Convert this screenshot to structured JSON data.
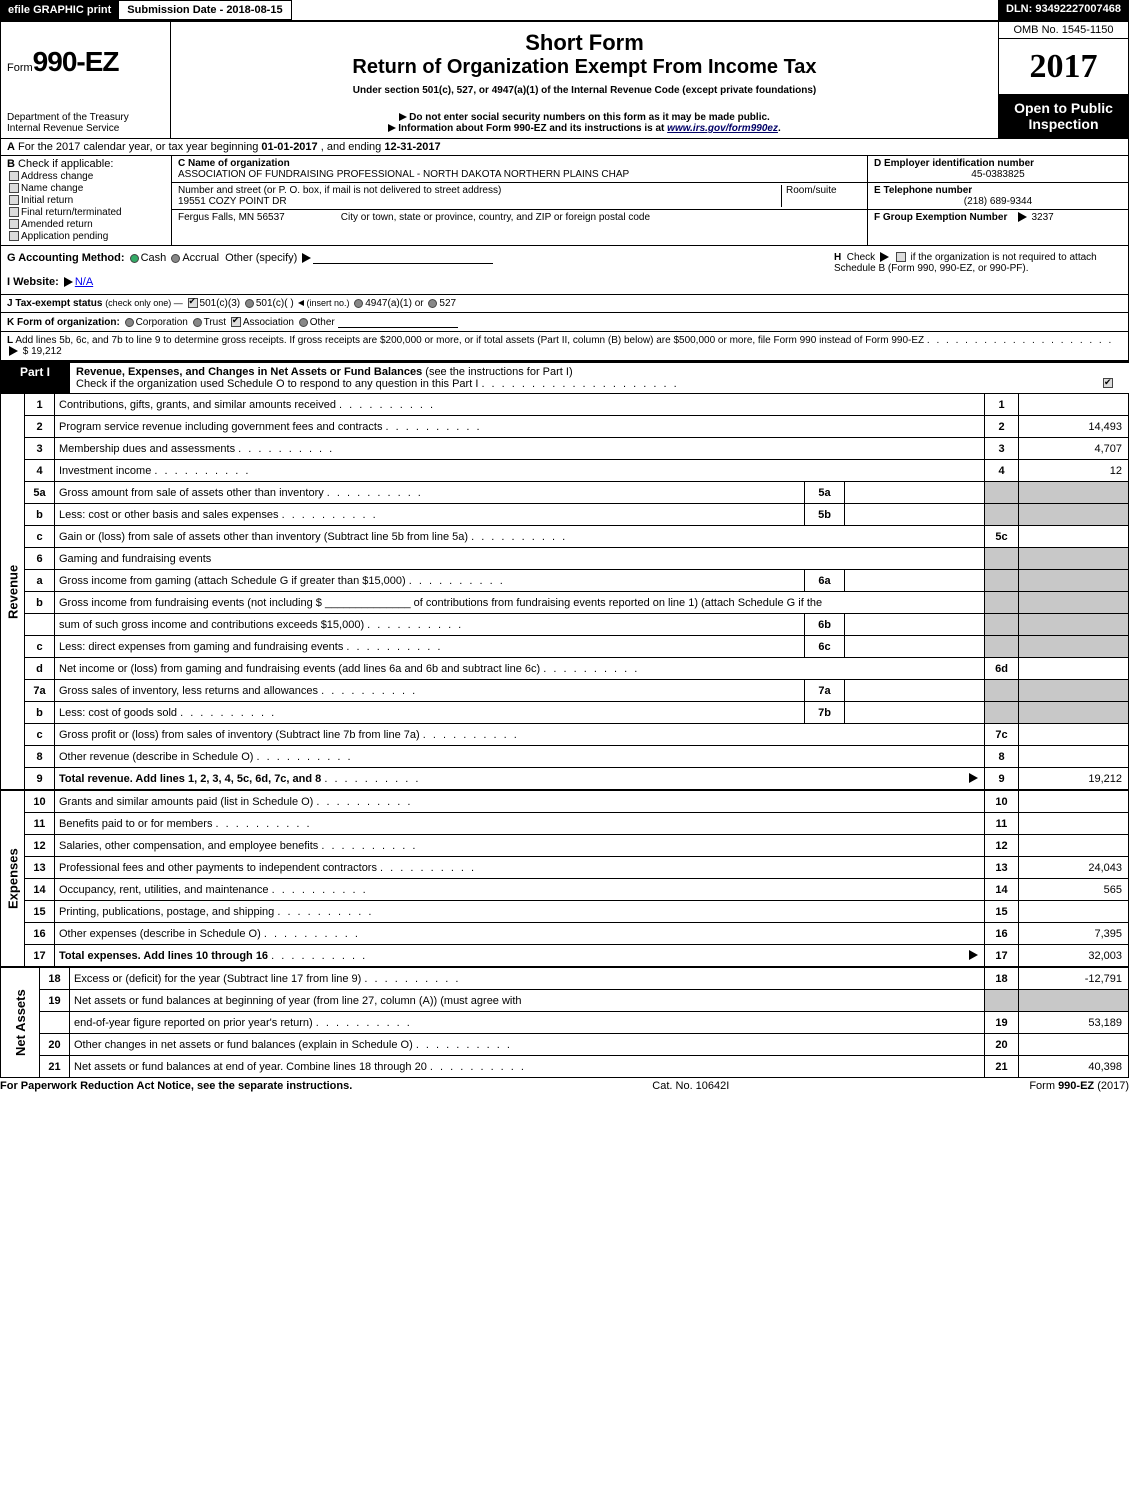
{
  "topbar": {
    "efile_label": "efile GRAPHIC print",
    "submission_label": "Submission Date - 2018-08-15",
    "dln_label": "DLN: 93492227007468"
  },
  "header": {
    "form_prefix": "Form",
    "form_number": "990-EZ",
    "dept1": "Department of the Treasury",
    "dept2": "Internal Revenue Service",
    "title1": "Short Form",
    "title2": "Return of Organization Exempt From Income Tax",
    "subtitle": "Under section 501(c), 527, or 4947(a)(1) of the Internal Revenue Code (except private foundations)",
    "instr1": "Do not enter social security numbers on this form as it may be made public.",
    "instr2_prefix": "Information about Form 990-EZ and its instructions is at ",
    "instr2_link": "www.irs.gov/form990ez",
    "instr2_suffix": ".",
    "omb": "OMB No. 1545-1150",
    "year": "2017",
    "open": "Open to Public Inspection"
  },
  "line_a": {
    "prefix": "A",
    "text1": "For the 2017 calendar year, or tax year beginning ",
    "begin": "01-01-2017",
    "mid": ", and ending ",
    "end": "12-31-2017"
  },
  "col_b": {
    "label": "B",
    "check_label": "Check if applicable:",
    "opts": [
      "Address change",
      "Name change",
      "Initial return",
      "Final return/terminated",
      "Amended return",
      "Application pending"
    ]
  },
  "col_c": {
    "name_label": "C Name of organization",
    "name_val": "ASSOCIATION OF FUNDRAISING PROFESSIONAL - NORTH DAKOTA NORTHERN PLAINS CHAP",
    "street_label": "Number and street (or P. O. box, if mail is not delivered to street address)",
    "room_label": "Room/suite",
    "street_val": "19551 COZY POINT DR",
    "city_label": "City or town, state or province, country, and ZIP or foreign postal code",
    "city_val": "Fergus Falls, MN  56537"
  },
  "col_def": {
    "d_label": "D Employer identification number",
    "d_val": "45-0383825",
    "e_label": "E Telephone number",
    "e_val": "(218) 689-9344",
    "f_label": "F Group Exemption Number",
    "f_val": "3237"
  },
  "line_g": {
    "label": "G Accounting Method:",
    "cash": "Cash",
    "accrual": "Accrual",
    "other": "Other (specify)"
  },
  "line_h": {
    "label": "H",
    "text1": "Check",
    "text2": "if the organization is not required to attach Schedule B (Form 990, 990-EZ, or 990-PF)."
  },
  "line_i": {
    "label": "I Website:",
    "val": "N/A"
  },
  "line_j": {
    "label": "J Tax-exempt status",
    "note": "(check only one) —",
    "o1": "501(c)(3)",
    "o2": "501(c)(  )",
    "o2_note": "(insert no.)",
    "o3": "4947(a)(1) or",
    "o4": "527"
  },
  "line_k": {
    "label": "K Form of organization:",
    "o1": "Corporation",
    "o2": "Trust",
    "o3": "Association",
    "o4": "Other"
  },
  "line_l": {
    "label": "L",
    "text": "Add lines 5b, 6c, and 7b to line 9 to determine gross receipts. If gross receipts are $200,000 or more, or if total assets (Part II, column (B) below) are $500,000 or more, file Form 990 instead of Form 990-EZ",
    "arrow_val": "$ 19,212"
  },
  "part1": {
    "label": "Part I",
    "title": "Revenue, Expenses, and Changes in Net Assets or Fund Balances",
    "subtitle": "(see the instructions for Part I)",
    "check_line": "Check if the organization used Schedule O to respond to any question in this Part I"
  },
  "side_labels": {
    "revenue": "Revenue",
    "expenses": "Expenses",
    "netassets": "Net Assets"
  },
  "rows": [
    {
      "n": "1",
      "desc": "Contributions, gifts, grants, and similar amounts received",
      "lab": "1",
      "val": ""
    },
    {
      "n": "2",
      "desc": "Program service revenue including government fees and contracts",
      "lab": "2",
      "val": "14,493"
    },
    {
      "n": "3",
      "desc": "Membership dues and assessments",
      "lab": "3",
      "val": "4,707"
    },
    {
      "n": "4",
      "desc": "Investment income",
      "lab": "4",
      "val": "12"
    },
    {
      "n": "5a",
      "desc": "Gross amount from sale of assets other than inventory",
      "sublab": "5a",
      "subval": ""
    },
    {
      "n": "b",
      "desc": "Less: cost or other basis and sales expenses",
      "sublab": "5b",
      "subval": ""
    },
    {
      "n": "c",
      "desc": "Gain or (loss) from sale of assets other than inventory (Subtract line 5b from line 5a)",
      "lab": "5c",
      "val": ""
    },
    {
      "n": "6",
      "desc": "Gaming and fundraising events",
      "shade_only": true
    },
    {
      "n": "a",
      "desc": "Gross income from gaming (attach Schedule G if greater than $15,000)",
      "sublab": "6a",
      "subval": ""
    },
    {
      "n": "b",
      "desc": "Gross income from fundraising events (not including $ ______________ of contributions from fundraising events reported on line 1) (attach Schedule G if the",
      "shade_only": true
    },
    {
      "n": "",
      "desc": "sum of such gross income and contributions exceeds $15,000)",
      "sublab": "6b",
      "subval": ""
    },
    {
      "n": "c",
      "desc": "Less: direct expenses from gaming and fundraising events",
      "sublab": "6c",
      "subval": ""
    },
    {
      "n": "d",
      "desc": "Net income or (loss) from gaming and fundraising events (add lines 6a and 6b and subtract line 6c)",
      "lab": "6d",
      "val": ""
    },
    {
      "n": "7a",
      "desc": "Gross sales of inventory, less returns and allowances",
      "sublab": "7a",
      "subval": ""
    },
    {
      "n": "b",
      "desc": "Less: cost of goods sold",
      "sublab": "7b",
      "subval": ""
    },
    {
      "n": "c",
      "desc": "Gross profit or (loss) from sales of inventory (Subtract line 7b from line 7a)",
      "lab": "7c",
      "val": ""
    },
    {
      "n": "8",
      "desc": "Other revenue (describe in Schedule O)",
      "lab": "8",
      "val": ""
    },
    {
      "n": "9",
      "desc": "Total revenue. Add lines 1, 2, 3, 4, 5c, 6d, 7c, and 8",
      "lab": "9",
      "val": "19,212",
      "bold": true,
      "arrow": true
    }
  ],
  "exp_rows": [
    {
      "n": "10",
      "desc": "Grants and similar amounts paid (list in Schedule O)",
      "lab": "10",
      "val": ""
    },
    {
      "n": "11",
      "desc": "Benefits paid to or for members",
      "lab": "11",
      "val": ""
    },
    {
      "n": "12",
      "desc": "Salaries, other compensation, and employee benefits",
      "lab": "12",
      "val": ""
    },
    {
      "n": "13",
      "desc": "Professional fees and other payments to independent contractors",
      "lab": "13",
      "val": "24,043"
    },
    {
      "n": "14",
      "desc": "Occupancy, rent, utilities, and maintenance",
      "lab": "14",
      "val": "565"
    },
    {
      "n": "15",
      "desc": "Printing, publications, postage, and shipping",
      "lab": "15",
      "val": ""
    },
    {
      "n": "16",
      "desc": "Other expenses (describe in Schedule O)",
      "lab": "16",
      "val": "7,395"
    },
    {
      "n": "17",
      "desc": "Total expenses. Add lines 10 through 16",
      "lab": "17",
      "val": "32,003",
      "bold": true,
      "arrow": true
    }
  ],
  "net_rows": [
    {
      "n": "18",
      "desc": "Excess or (deficit) for the year (Subtract line 17 from line 9)",
      "lab": "18",
      "val": "-12,791"
    },
    {
      "n": "19",
      "desc": "Net assets or fund balances at beginning of year (from line 27, column (A)) (must agree with",
      "shade_only": true
    },
    {
      "n": "",
      "desc": "end-of-year figure reported on prior year's return)",
      "lab": "19",
      "val": "53,189"
    },
    {
      "n": "20",
      "desc": "Other changes in net assets or fund balances (explain in Schedule O)",
      "lab": "20",
      "val": ""
    },
    {
      "n": "21",
      "desc": "Net assets or fund balances at end of year. Combine lines 18 through 20",
      "lab": "21",
      "val": "40,398"
    }
  ],
  "footer": {
    "left": "For Paperwork Reduction Act Notice, see the separate instructions.",
    "center": "Cat. No. 10642I",
    "right_prefix": "Form ",
    "right_form": "990-EZ",
    "right_suffix": " (2017)"
  }
}
